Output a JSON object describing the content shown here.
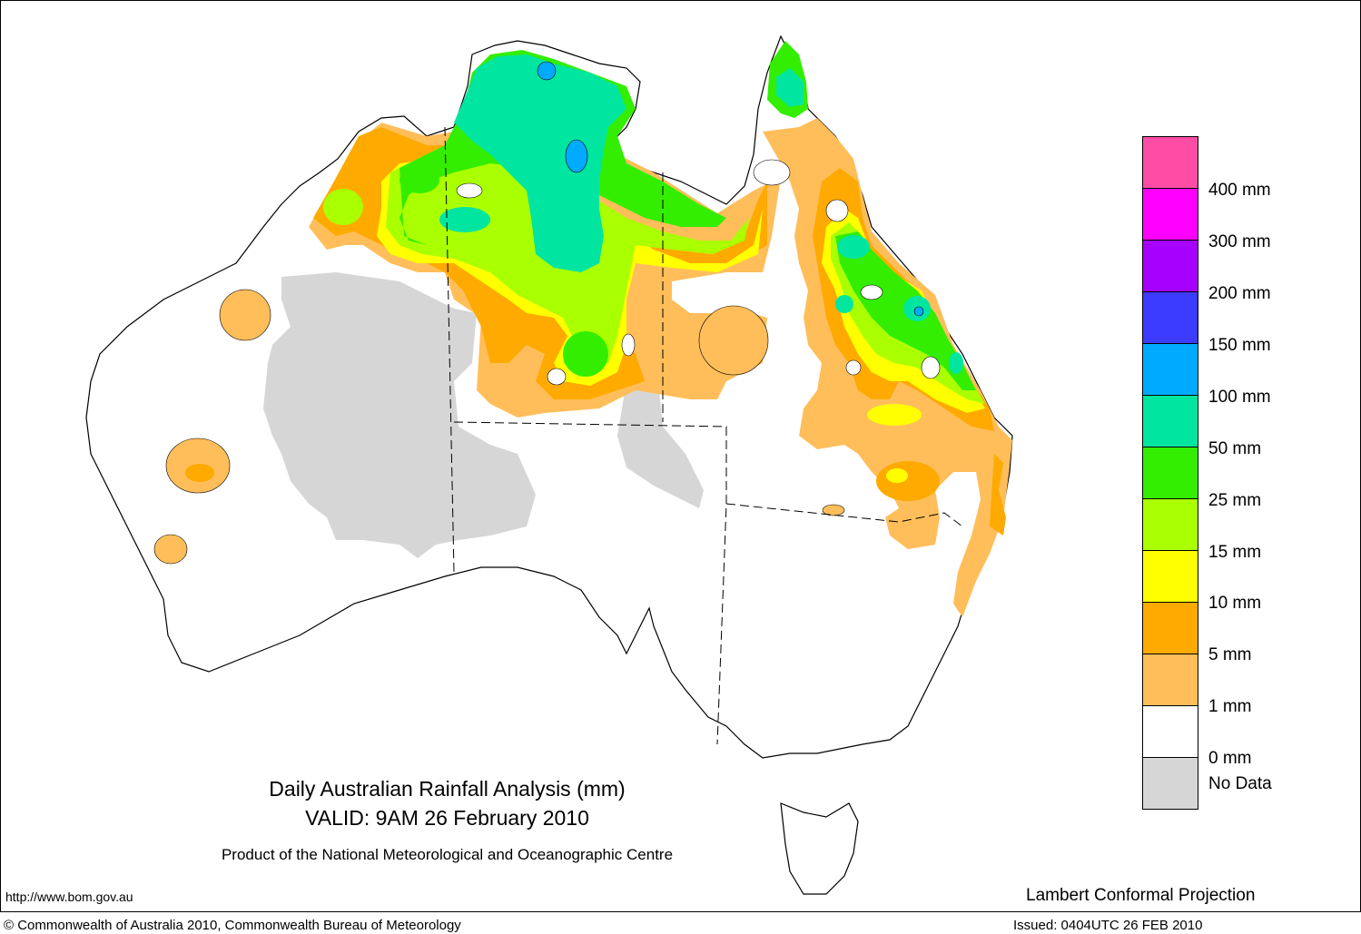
{
  "map": {
    "title_line1": "Daily Australian Rainfall Analysis (mm)",
    "title_line2": "VALID: 9AM 26 February 2010",
    "title_line3": "Product of the National Meteorological and Oceanographic Centre",
    "url": "http://www.bom.gov.au",
    "projection": "Lambert Conformal Projection",
    "copyright": "© Commonwealth of Australia 2010, Commonwealth Bureau of Meteorology",
    "issued": "Issued: 0404UTC 26 FEB 2010"
  },
  "legend": {
    "classes": [
      {
        "label": "400 mm",
        "color": "#ff4da6"
      },
      {
        "label": "300 mm",
        "color": "#ff00ff"
      },
      {
        "label": "200 mm",
        "color": "#a600ff"
      },
      {
        "label": "150 mm",
        "color": "#3c3cff"
      },
      {
        "label": "100 mm",
        "color": "#00aaff"
      },
      {
        "label": "50 mm",
        "color": "#00e6a0"
      },
      {
        "label": "25 mm",
        "color": "#33ee00"
      },
      {
        "label": "15 mm",
        "color": "#aaff00"
      },
      {
        "label": "10 mm",
        "color": "#ffff00"
      },
      {
        "label": "5 mm",
        "color": "#ffaa00"
      },
      {
        "label": "1 mm",
        "color": "#ffbe5a"
      },
      {
        "label": "0 mm",
        "color": "#ffffff"
      },
      {
        "label": "No Data",
        "color": "#d6d6d6"
      }
    ]
  }
}
